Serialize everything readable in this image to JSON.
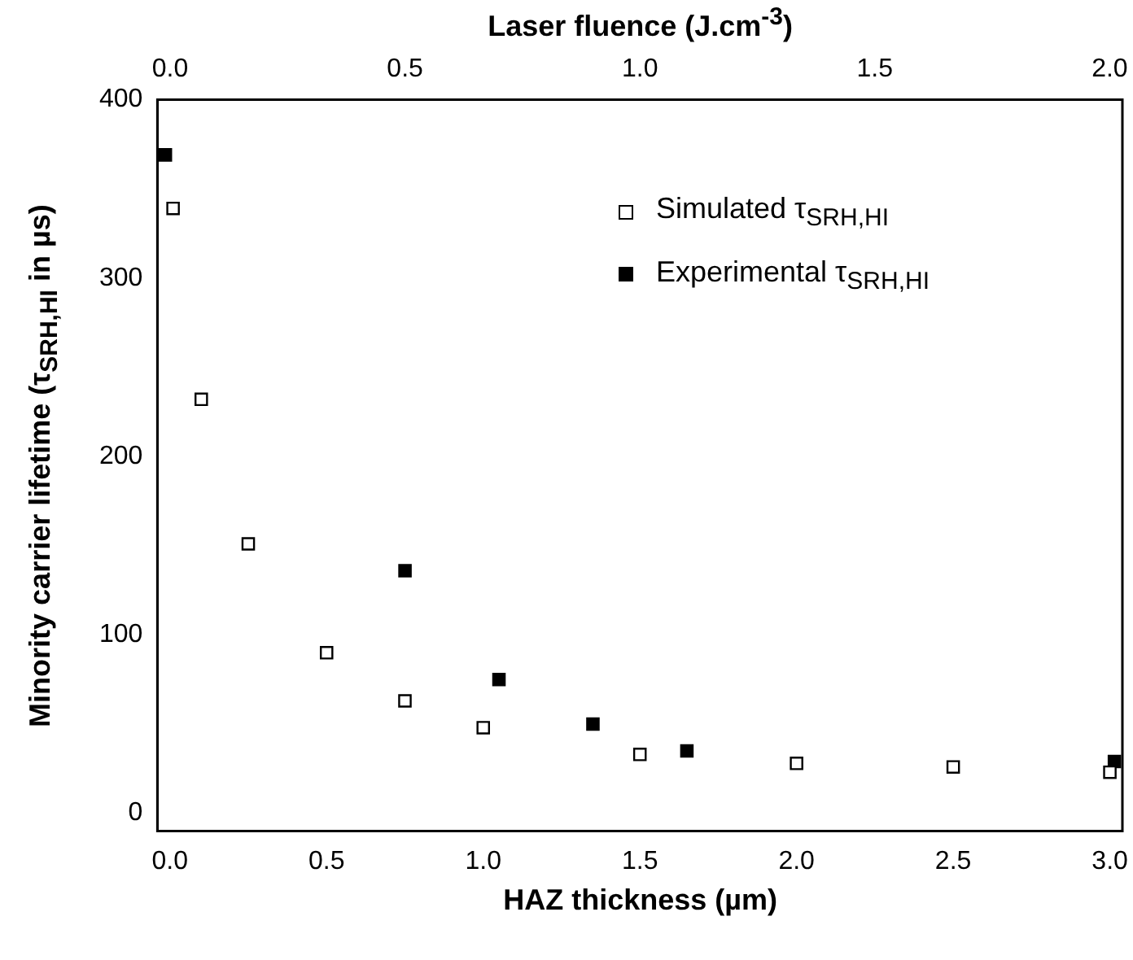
{
  "chart_data": {
    "type": "scatter",
    "xlabel": "HAZ thickness (µm)",
    "x2label": "Laser fluence (J.cm$^{-3}$)",
    "ylabel": "Minority carrier lifetime (τ$_{SRH,HI}$ in µs)",
    "xlim": [
      -0.04,
      3.04
    ],
    "xticks": [
      {
        "value": 0,
        "label": "0.0"
      },
      {
        "value": 0.5,
        "label": "0.5"
      },
      {
        "value": 1,
        "label": "1.0"
      },
      {
        "value": 1.5,
        "label": "1.5"
      },
      {
        "value": 2,
        "label": "2.0"
      },
      {
        "value": 2.5,
        "label": "2.5"
      },
      {
        "value": 3,
        "label": "3.0"
      }
    ],
    "x2lim": [
      -0.027,
      2.027
    ],
    "x2ticks": [
      {
        "value": 0,
        "label": "0.0"
      },
      {
        "value": 0.5,
        "label": "0.5"
      },
      {
        "value": 1,
        "label": "1.0"
      },
      {
        "value": 1.5,
        "label": "1.5"
      },
      {
        "value": 2,
        "label": "2.0"
      }
    ],
    "ylim": [
      -10,
      400
    ],
    "yticks": [
      0,
      100,
      200,
      300,
      400
    ],
    "grid": false,
    "legend": "top right",
    "marker": "square",
    "series": [
      {
        "name": "Simulated τ$_{SRH,HI}$",
        "color": "#000000",
        "x": [
          0.01,
          0.1,
          0.25,
          0.5,
          0.75,
          1.0,
          1.5,
          2.0,
          2.5,
          3.0
        ],
        "values": [
          339,
          232,
          151,
          90,
          63,
          48,
          33,
          28,
          26,
          23
        ]
      },
      {
        "name": "Experimental τ$_{SRH,HI}$",
        "color": "#000000",
        "axis": "x2",
        "x": [
          -0.01,
          0.5,
          0.7,
          0.9,
          1.1,
          2.01
        ],
        "values": [
          369,
          136,
          75,
          50,
          35,
          29
        ]
      }
    ]
  }
}
